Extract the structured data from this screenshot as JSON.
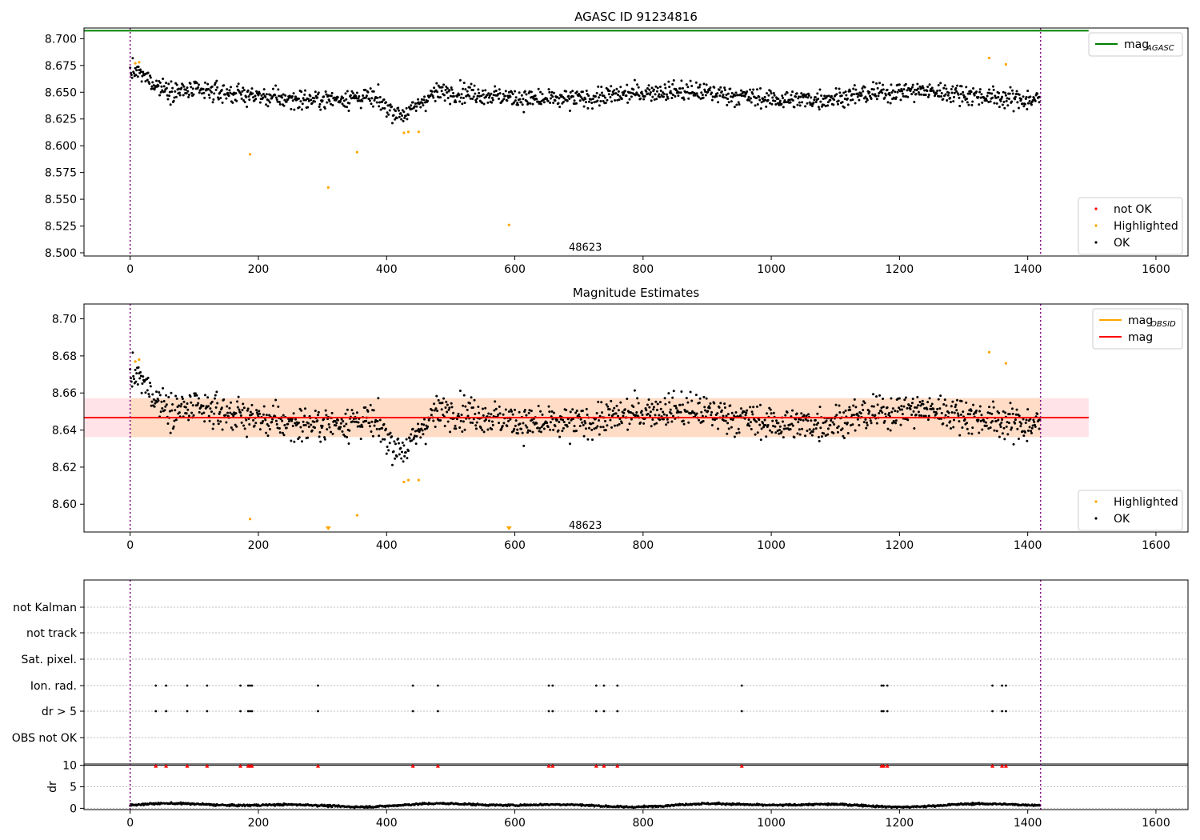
{
  "colors": {
    "ok": "#000000",
    "highlighted": "#ffa500",
    "not_ok": "#ff0000",
    "mag_agasc_line": "#008000",
    "mag_obsid_line": "#ffa500",
    "mag_line": "#ff0000",
    "band_pink": "#ffc0cb",
    "band_orange": "#ffdab9",
    "obs_boundary": "#800080",
    "grid": "#bbbbbb"
  },
  "chart_data": [
    {
      "type": "scatter",
      "title": "AGASC ID 91234816",
      "xlabel": "",
      "ylabel": "",
      "xlim": [
        -72,
        1650
      ],
      "ylim": [
        8.497,
        8.71
      ],
      "x_ticks": [
        0,
        200,
        400,
        600,
        800,
        1000,
        1200,
        1400,
        1600
      ],
      "y_ticks": [
        8.5,
        8.525,
        8.55,
        8.575,
        8.6,
        8.625,
        8.65,
        8.675,
        8.7
      ],
      "y_tick_labels": [
        "8.500",
        "8.525",
        "8.550",
        "8.575",
        "8.600",
        "8.625",
        "8.650",
        "8.675",
        "8.700"
      ],
      "grid": false,
      "obsid_boundaries": [
        0,
        1420
      ],
      "obsid_label": {
        "text": "48623",
        "x": 710,
        "y": 8.505
      },
      "mag_agasc": 8.7075,
      "mag_agasc_xrange": [
        -72,
        1495
      ],
      "series_model": {
        "n": 1420,
        "base": 8.647,
        "noise": 0.007,
        "dip_center": 425,
        "dip_depth": 0.02,
        "dip_width": 35,
        "start_boost": 0.022,
        "start_width": 40
      },
      "highlighted": [
        {
          "x": 8,
          "y": 8.677
        },
        {
          "x": 14,
          "y": 8.678
        },
        {
          "x": 187,
          "y": 8.592
        },
        {
          "x": 309,
          "y": 8.561
        },
        {
          "x": 354,
          "y": 8.594
        },
        {
          "x": 427,
          "y": 8.612
        },
        {
          "x": 434,
          "y": 8.613
        },
        {
          "x": 450,
          "y": 8.613
        },
        {
          "x": 591,
          "y": 8.526
        },
        {
          "x": 1340,
          "y": 8.682
        },
        {
          "x": 1366,
          "y": 8.676
        }
      ],
      "legends": [
        {
          "position": "upper right",
          "entries": [
            {
              "label": "mag",
              "sub": "AGASC",
              "kind": "line",
              "color": "#008000"
            }
          ]
        },
        {
          "position": "lower right",
          "entries": [
            {
              "label": "not OK",
              "kind": "marker",
              "color": "#ff0000"
            },
            {
              "label": "Highlighted",
              "kind": "marker",
              "color": "#ffa500"
            },
            {
              "label": "OK",
              "kind": "marker",
              "color": "#000000"
            }
          ]
        }
      ]
    },
    {
      "type": "scatter",
      "title": "Magnitude Estimates",
      "xlabel": "",
      "ylabel": "",
      "xlim": [
        -72,
        1650
      ],
      "ylim": [
        8.585,
        8.708
      ],
      "x_ticks": [
        0,
        200,
        400,
        600,
        800,
        1000,
        1200,
        1400,
        1600
      ],
      "y_ticks": [
        8.6,
        8.62,
        8.64,
        8.66,
        8.68,
        8.7
      ],
      "y_tick_labels": [
        "8.60",
        "8.62",
        "8.64",
        "8.66",
        "8.68",
        "8.70"
      ],
      "grid": false,
      "obsid_boundaries": [
        0,
        1420
      ],
      "obsid_label": {
        "text": "48623",
        "x": 710,
        "y": 8.5885
      },
      "mag": 8.6467,
      "mag_band": [
        8.6362,
        8.6572
      ],
      "mag_obsid_band": [
        8.6362,
        8.6572
      ],
      "band_xrange": [
        -72,
        1495
      ],
      "highlighted": [
        {
          "x": 8,
          "y": 8.677
        },
        {
          "x": 14,
          "y": 8.678
        },
        {
          "x": 187,
          "y": 8.592
        },
        {
          "x": 354,
          "y": 8.594
        },
        {
          "x": 427,
          "y": 8.612
        },
        {
          "x": 434,
          "y": 8.613
        },
        {
          "x": 450,
          "y": 8.613
        },
        {
          "x": 1340,
          "y": 8.682
        },
        {
          "x": 1366,
          "y": 8.676
        }
      ],
      "offscale_markers": [
        {
          "x": 309
        },
        {
          "x": 591
        }
      ],
      "legends": [
        {
          "position": "upper right",
          "entries": [
            {
              "label": "mag",
              "sub": "OBSID",
              "kind": "line",
              "color": "#ffa500"
            },
            {
              "label": "mag",
              "kind": "line",
              "color": "#ff0000"
            }
          ]
        },
        {
          "position": "lower right",
          "entries": [
            {
              "label": "Highlighted",
              "kind": "marker",
              "color": "#ffa500"
            },
            {
              "label": "OK",
              "kind": "marker",
              "color": "#000000"
            }
          ]
        }
      ]
    },
    {
      "type": "scatter",
      "title": "",
      "xlabel": "",
      "ylabel": "",
      "xlim": [
        -72,
        1650
      ],
      "categories": [
        "not Kalman",
        "not track",
        "Sat. pixel.",
        "Ion. rad.",
        "dr > 5",
        "OBS not OK"
      ],
      "flag_rows": {
        "Ion. rad.": [
          40,
          56,
          89,
          120,
          172,
          184,
          187,
          190,
          293,
          441,
          480,
          653,
          659,
          727,
          739,
          760,
          954,
          1172,
          1175,
          1181,
          1345,
          1360,
          1366
        ],
        "dr > 5": [
          40,
          56,
          89,
          120,
          172,
          184,
          187,
          190,
          293,
          441,
          480,
          653,
          659,
          727,
          739,
          760,
          954,
          1172,
          1175,
          1181,
          1345,
          1360,
          1366
        ]
      },
      "grid": true,
      "obsid_boundaries": [
        0,
        1420
      ]
    },
    {
      "type": "scatter",
      "title": "",
      "xlabel": "",
      "ylabel": "dr",
      "xlim": [
        -72,
        1650
      ],
      "ylim": [
        -0.3,
        10.3
      ],
      "x_ticks": [
        0,
        200,
        400,
        600,
        800,
        1000,
        1200,
        1400,
        1600
      ],
      "y_ticks": [
        0,
        5,
        10
      ],
      "y_tick_labels": [
        "0",
        "5",
        "10"
      ],
      "grid": true,
      "threshold_line": 10,
      "dr_model": {
        "n": 1420,
        "base": 0.75,
        "amplitude": 0.45
      },
      "clipped_markers": [
        40,
        56,
        89,
        120,
        172,
        184,
        187,
        190,
        293,
        441,
        480,
        653,
        659,
        727,
        739,
        760,
        954,
        1172,
        1175,
        1181,
        1345,
        1360,
        1366
      ],
      "obsid_boundaries": [
        0,
        1420
      ]
    }
  ]
}
